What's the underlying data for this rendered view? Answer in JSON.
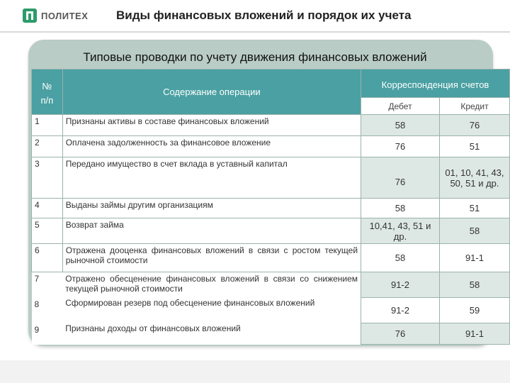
{
  "header": {
    "logo_text": "ПОЛИТЕХ",
    "title": "Виды финансовых вложений и порядок их учета"
  },
  "panel": {
    "title": "Типовые проводки по учету движения финансовых вложений"
  },
  "table": {
    "col_num": "№ п/п",
    "col_op": "Содержание операции",
    "col_corr": "Корреспонденция счетов",
    "col_debit": "Дебет",
    "col_credit": "Кредит",
    "rows": [
      {
        "num": "1",
        "op": "Признаны активы в составе финансовых вложений",
        "debit": "58",
        "credit": "76"
      },
      {
        "num": "2",
        "op": "Оплачена задолженность за финансовое вложение",
        "debit": "76",
        "credit": "51"
      },
      {
        "num": "3",
        "op": "Передано имущество в счет вклада в уставный капитал",
        "debit": "76",
        "credit": "01, 10, 41, 43, 50, 51 и др."
      },
      {
        "num": "4",
        "op": "Выданы займы другим организациям",
        "debit": "58",
        "credit": "51"
      },
      {
        "num": "5",
        "op": "Возврат займа",
        "debit": "10,41, 43, 51 и др.",
        "credit": "58"
      },
      {
        "num": "6",
        "op": "Отражена дооценка финансовых вложений в связи с ростом текущей рыночной стоимости",
        "debit": "58",
        "credit": "91-1"
      },
      {
        "num": "7",
        "op": "Отражено обесценение финансовых вложений в связи со снижением текущей рыночной стоимости",
        "debit": "91-2",
        "credit": "58"
      },
      {
        "num": "8",
        "op": "Сформирован резерв под обесценение финансовых вложений",
        "debit": "91-2",
        "credit": "59"
      },
      {
        "num": "9",
        "op": "Признаны доходы от финансовых вложений",
        "debit": "76",
        "credit": "91-1"
      }
    ]
  }
}
